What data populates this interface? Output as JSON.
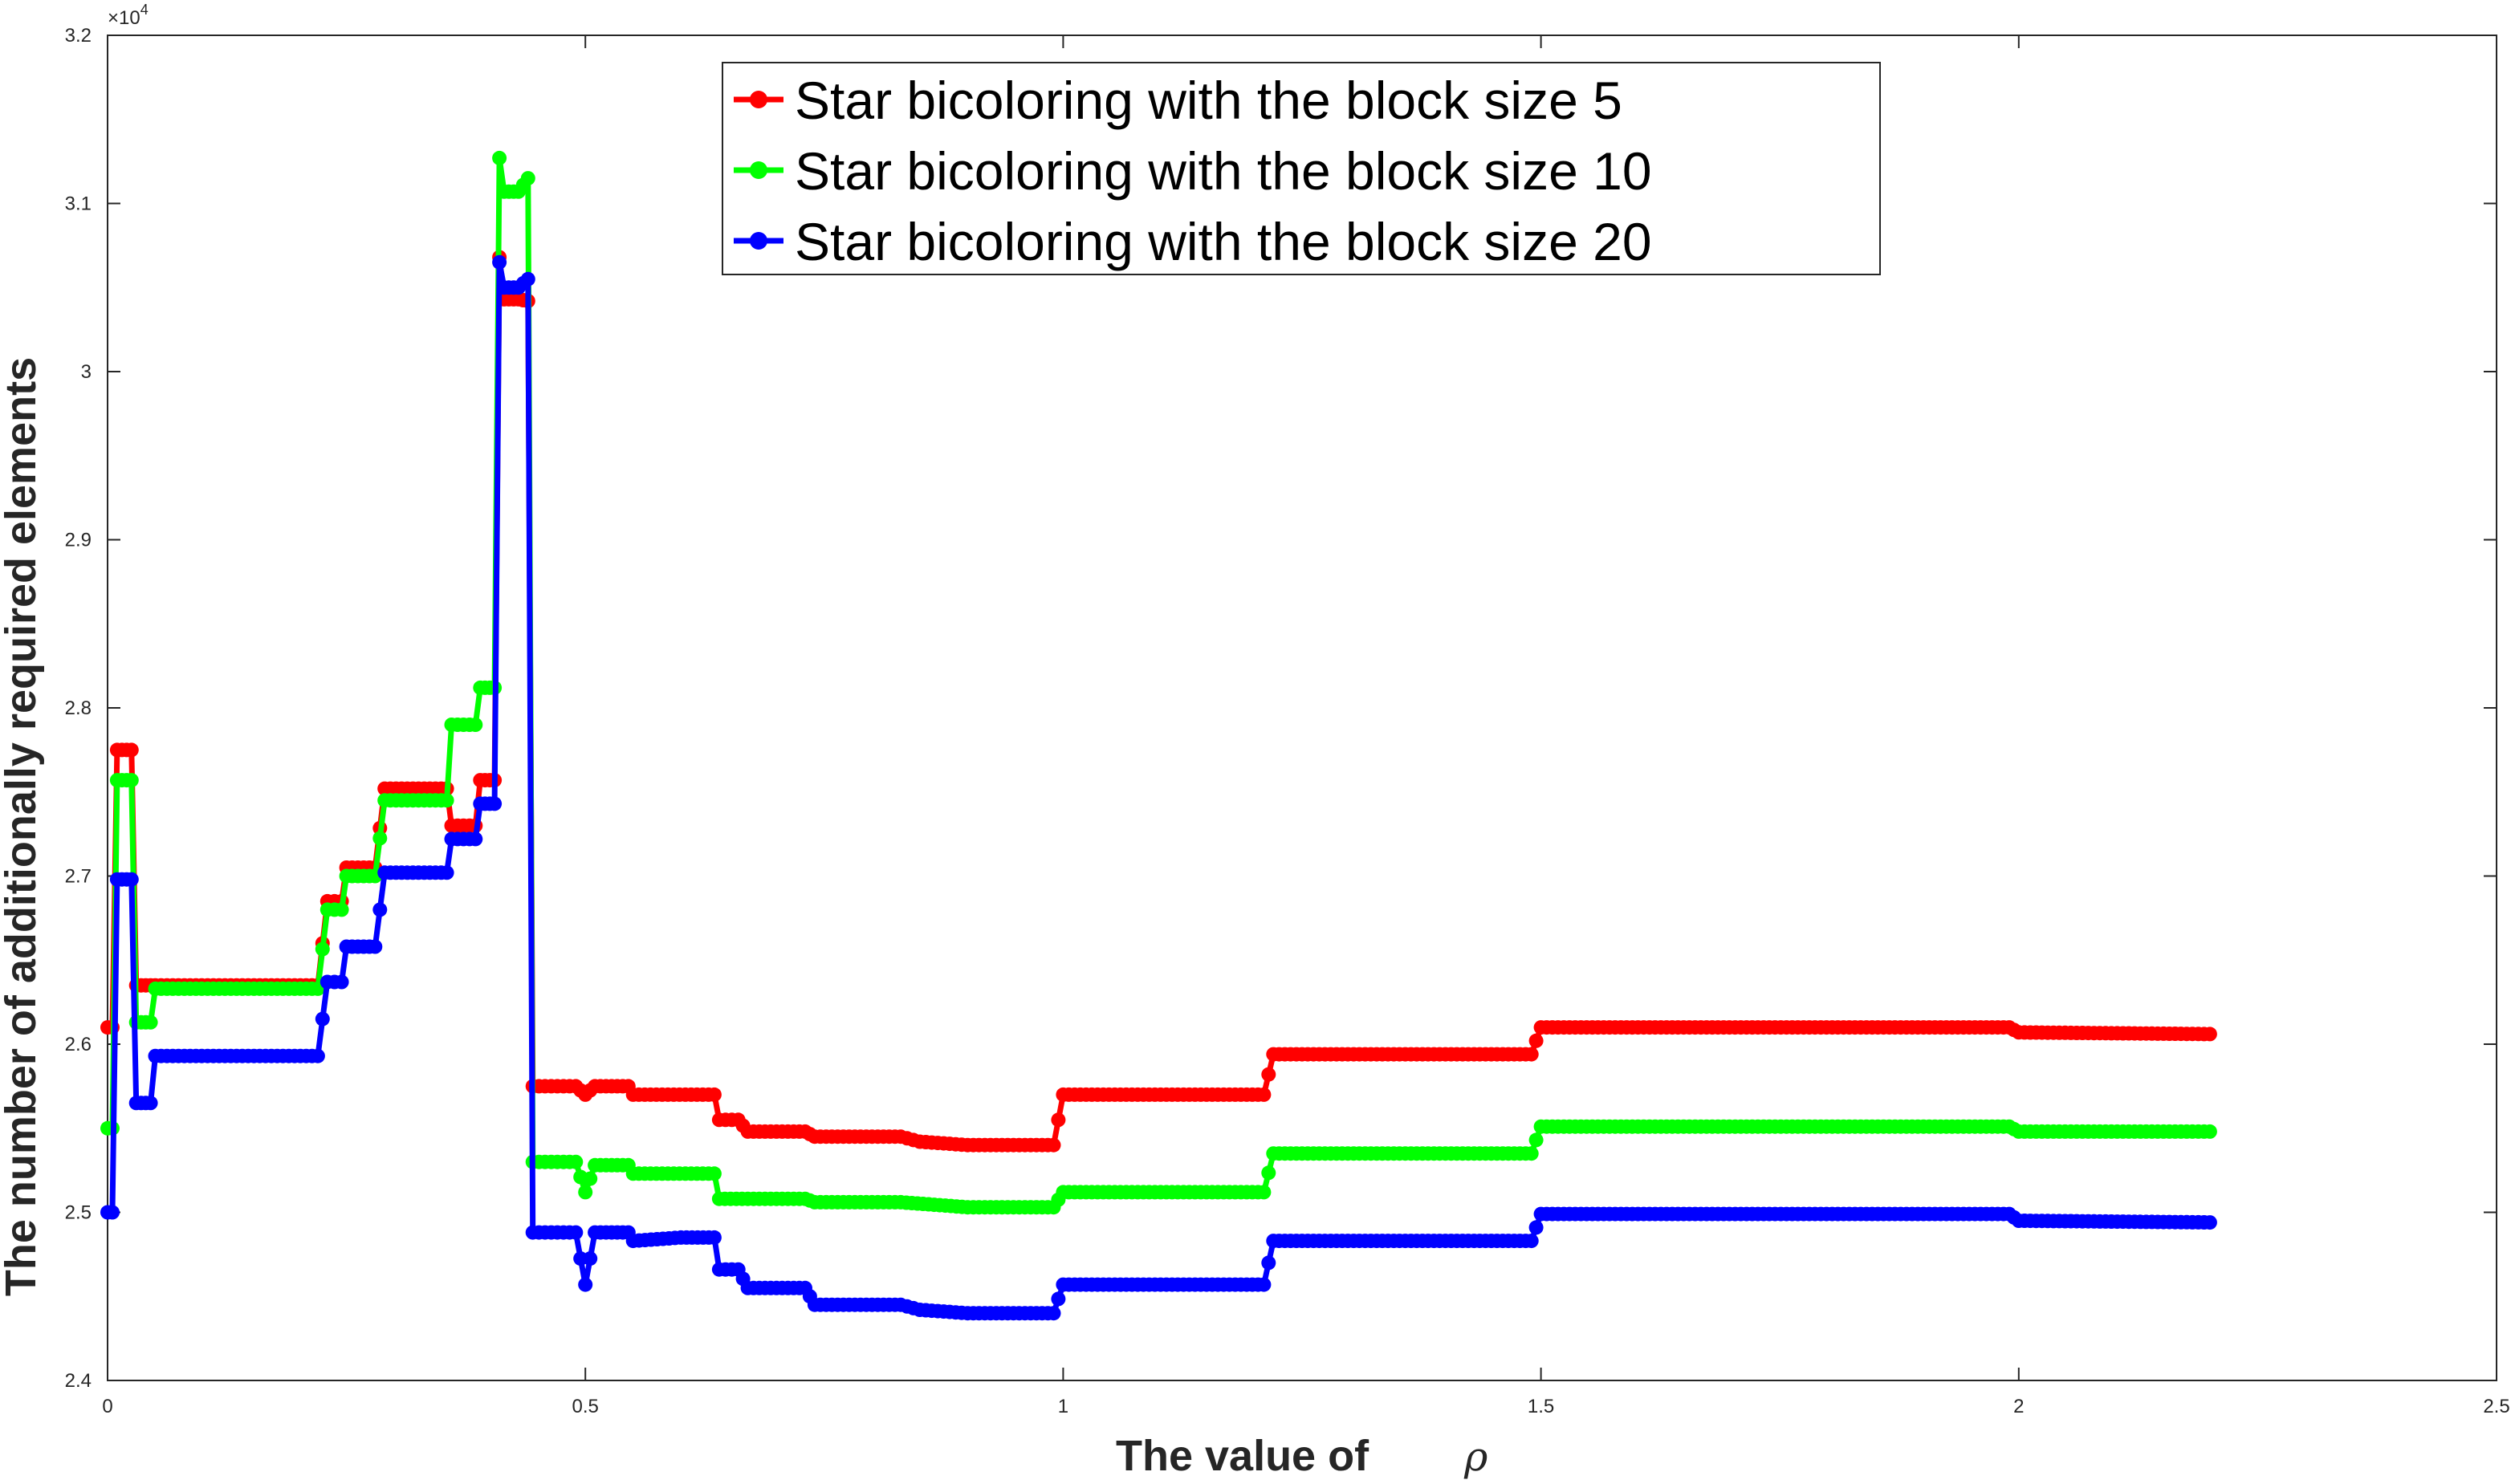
{
  "chart_data": {
    "type": "line",
    "xlabel": "The value of",
    "xlabel_symbol": "ρ",
    "ylabel": "The number of additionally required elements",
    "y_exponent_label": "×10",
    "y_exponent_power": "4",
    "xlim": [
      0,
      2.5
    ],
    "ylim": [
      2.4,
      3.2
    ],
    "x_ticks": [
      0,
      0.5,
      1,
      1.5,
      2,
      2.5
    ],
    "x_tick_labels": [
      "0",
      "0.5",
      "1",
      "1.5",
      "2",
      "2.5"
    ],
    "y_ticks": [
      2.4,
      2.5,
      2.6,
      2.7,
      2.8,
      2.9,
      3.0,
      3.1,
      3.2
    ],
    "y_tick_labels": [
      "2.4",
      "2.5",
      "2.6",
      "2.7",
      "2.8",
      "2.9",
      "3",
      "3.1",
      "3.2"
    ],
    "grid": false,
    "legend_position": "top-center",
    "series": [
      {
        "name": "Star bicoloring with the block size 5",
        "color": "#ff0000",
        "points": [
          [
            0,
            2.61
          ],
          [
            0.005,
            2.61
          ],
          [
            0.01,
            2.775
          ],
          [
            0.025,
            2.775
          ],
          [
            0.03,
            2.635
          ],
          [
            0.04,
            2.635
          ],
          [
            0.05,
            2.635
          ],
          [
            0.22,
            2.635
          ],
          [
            0.23,
            2.685
          ],
          [
            0.245,
            2.685
          ],
          [
            0.25,
            2.705
          ],
          [
            0.28,
            2.705
          ],
          [
            0.29,
            2.752
          ],
          [
            0.355,
            2.752
          ],
          [
            0.36,
            2.73
          ],
          [
            0.385,
            2.73
          ],
          [
            0.39,
            2.757
          ],
          [
            0.405,
            2.757
          ],
          [
            0.41,
            3.068
          ],
          [
            0.415,
            3.043
          ],
          [
            0.43,
            3.043
          ],
          [
            0.44,
            3.042
          ],
          [
            0.445,
            2.575
          ],
          [
            0.49,
            2.575
          ],
          [
            0.5,
            2.57
          ],
          [
            0.51,
            2.575
          ],
          [
            0.545,
            2.575
          ],
          [
            0.55,
            2.57
          ],
          [
            0.635,
            2.57
          ],
          [
            0.64,
            2.555
          ],
          [
            0.66,
            2.555
          ],
          [
            0.67,
            2.548
          ],
          [
            0.73,
            2.548
          ],
          [
            0.74,
            2.545
          ],
          [
            0.83,
            2.545
          ],
          [
            0.85,
            2.542
          ],
          [
            0.9,
            2.54
          ],
          [
            0.99,
            2.54
          ],
          [
            1.0,
            2.57
          ],
          [
            1.21,
            2.57
          ],
          [
            1.22,
            2.594
          ],
          [
            1.49,
            2.594
          ],
          [
            1.5,
            2.61
          ],
          [
            1.99,
            2.61
          ],
          [
            2.0,
            2.607
          ],
          [
            2.2,
            2.606
          ]
        ]
      },
      {
        "name": "Star bicoloring with the block size 10",
        "color": "#00ff00",
        "points": [
          [
            0,
            2.55
          ],
          [
            0.005,
            2.55
          ],
          [
            0.01,
            2.757
          ],
          [
            0.025,
            2.757
          ],
          [
            0.03,
            2.613
          ],
          [
            0.045,
            2.613
          ],
          [
            0.05,
            2.633
          ],
          [
            0.22,
            2.633
          ],
          [
            0.23,
            2.68
          ],
          [
            0.245,
            2.68
          ],
          [
            0.25,
            2.7
          ],
          [
            0.28,
            2.7
          ],
          [
            0.29,
            2.745
          ],
          [
            0.355,
            2.745
          ],
          [
            0.36,
            2.79
          ],
          [
            0.385,
            2.79
          ],
          [
            0.39,
            2.812
          ],
          [
            0.405,
            2.812
          ],
          [
            0.41,
            3.127
          ],
          [
            0.415,
            3.107
          ],
          [
            0.43,
            3.107
          ],
          [
            0.44,
            3.115
          ],
          [
            0.445,
            2.53
          ],
          [
            0.49,
            2.53
          ],
          [
            0.5,
            2.512
          ],
          [
            0.51,
            2.528
          ],
          [
            0.545,
            2.528
          ],
          [
            0.55,
            2.523
          ],
          [
            0.635,
            2.523
          ],
          [
            0.64,
            2.508
          ],
          [
            0.73,
            2.508
          ],
          [
            0.74,
            2.506
          ],
          [
            0.83,
            2.506
          ],
          [
            0.9,
            2.503
          ],
          [
            0.99,
            2.503
          ],
          [
            1.0,
            2.512
          ],
          [
            1.21,
            2.512
          ],
          [
            1.22,
            2.535
          ],
          [
            1.49,
            2.535
          ],
          [
            1.5,
            2.551
          ],
          [
            1.99,
            2.551
          ],
          [
            2.0,
            2.548
          ],
          [
            2.2,
            2.548
          ]
        ]
      },
      {
        "name": "Star bicoloring with the block size 20",
        "color": "#0000ff",
        "points": [
          [
            0,
            2.5
          ],
          [
            0.005,
            2.5
          ],
          [
            0.01,
            2.698
          ],
          [
            0.025,
            2.698
          ],
          [
            0.03,
            2.565
          ],
          [
            0.045,
            2.565
          ],
          [
            0.05,
            2.593
          ],
          [
            0.22,
            2.593
          ],
          [
            0.23,
            2.637
          ],
          [
            0.245,
            2.637
          ],
          [
            0.25,
            2.658
          ],
          [
            0.28,
            2.658
          ],
          [
            0.29,
            2.702
          ],
          [
            0.355,
            2.702
          ],
          [
            0.36,
            2.722
          ],
          [
            0.385,
            2.722
          ],
          [
            0.39,
            2.743
          ],
          [
            0.405,
            2.743
          ],
          [
            0.41,
            3.065
          ],
          [
            0.415,
            3.05
          ],
          [
            0.43,
            3.05
          ],
          [
            0.44,
            3.055
          ],
          [
            0.445,
            2.488
          ],
          [
            0.49,
            2.488
          ],
          [
            0.5,
            2.457
          ],
          [
            0.51,
            2.488
          ],
          [
            0.545,
            2.488
          ],
          [
            0.55,
            2.483
          ],
          [
            0.6,
            2.485
          ],
          [
            0.635,
            2.485
          ],
          [
            0.64,
            2.466
          ],
          [
            0.66,
            2.466
          ],
          [
            0.67,
            2.455
          ],
          [
            0.73,
            2.455
          ],
          [
            0.74,
            2.445
          ],
          [
            0.83,
            2.445
          ],
          [
            0.85,
            2.442
          ],
          [
            0.9,
            2.44
          ],
          [
            0.99,
            2.44
          ],
          [
            1.0,
            2.457
          ],
          [
            1.21,
            2.457
          ],
          [
            1.22,
            2.483
          ],
          [
            1.49,
            2.483
          ],
          [
            1.5,
            2.499
          ],
          [
            1.99,
            2.499
          ],
          [
            2.0,
            2.495
          ],
          [
            2.2,
            2.494
          ]
        ]
      }
    ]
  }
}
